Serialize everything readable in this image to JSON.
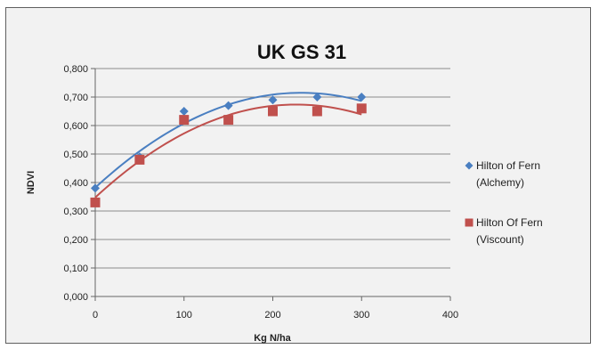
{
  "chart_data": {
    "type": "scatter",
    "title": "UK GS 31",
    "xlabel": "Kg N/ha",
    "ylabel": "NDVI",
    "xlim": [
      0,
      400
    ],
    "ylim": [
      0,
      0.8
    ],
    "xticks": [
      "0",
      "100",
      "200",
      "300",
      "400"
    ],
    "yticks": [
      "0,000",
      "0,100",
      "0,200",
      "0,300",
      "0,400",
      "0,500",
      "0,600",
      "0,700",
      "0,800"
    ],
    "grid": "horizontal",
    "legend_position": "right",
    "series": [
      {
        "name_lines": [
          "Hilton of Fern",
          "(Alchemy)"
        ],
        "marker": "diamond",
        "color": "#4a7fc1",
        "trendline": "polynomial",
        "points": [
          {
            "x": 0,
            "y": 0.38
          },
          {
            "x": 50,
            "y": 0.49
          },
          {
            "x": 100,
            "y": 0.65
          },
          {
            "x": 150,
            "y": 0.67
          },
          {
            "x": 200,
            "y": 0.69
          },
          {
            "x": 250,
            "y": 0.7
          },
          {
            "x": 300,
            "y": 0.7
          }
        ]
      },
      {
        "name_lines": [
          "Hilton Of Fern",
          "(Viscount)"
        ],
        "marker": "square",
        "color": "#c0504d",
        "trendline": "polynomial",
        "points": [
          {
            "x": 0,
            "y": 0.33
          },
          {
            "x": 50,
            "y": 0.48
          },
          {
            "x": 100,
            "y": 0.62
          },
          {
            "x": 150,
            "y": 0.62
          },
          {
            "x": 200,
            "y": 0.65
          },
          {
            "x": 250,
            "y": 0.65
          },
          {
            "x": 300,
            "y": 0.66
          }
        ]
      }
    ]
  }
}
